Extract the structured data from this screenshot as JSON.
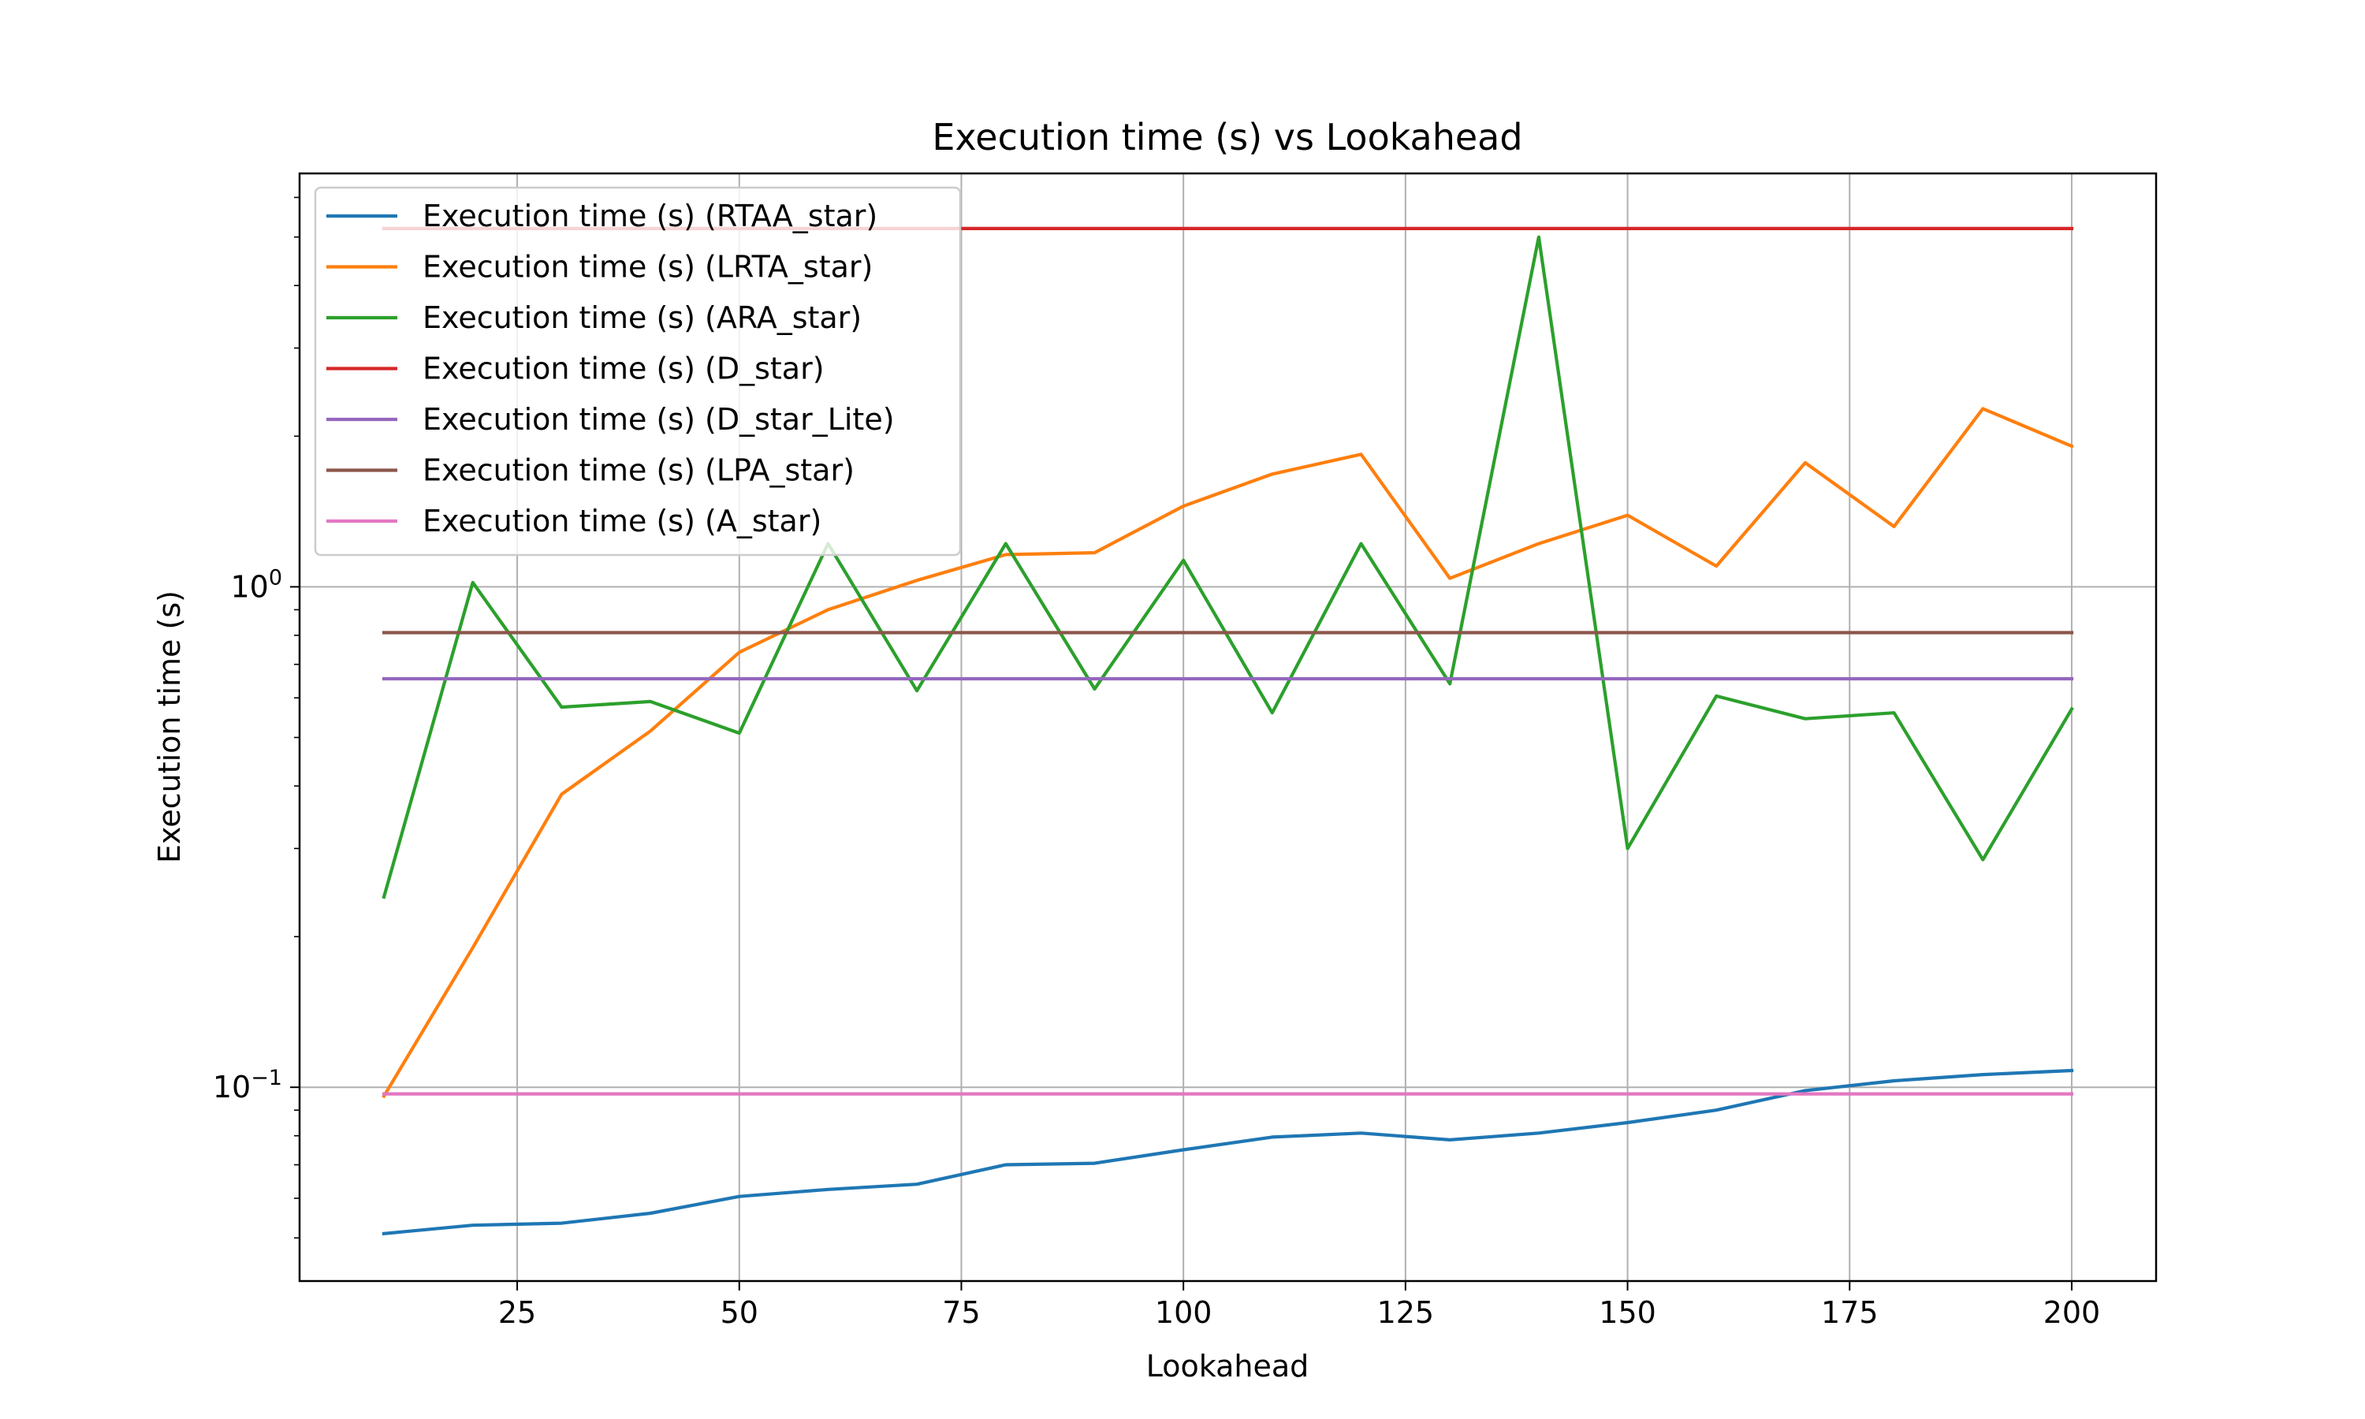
{
  "chart_data": {
    "type": "line",
    "title": "Execution time (s) vs Lookahead",
    "xlabel": "Lookahead",
    "ylabel": "Execution time (s)",
    "xlim": [
      0.5,
      209.5
    ],
    "ylim": [
      0.041,
      6.7
    ],
    "yscale": "log",
    "grid": true,
    "legend_position": "upper-left",
    "x_ticks": [
      {
        "value": 25,
        "label": "25"
      },
      {
        "value": 50,
        "label": "50"
      },
      {
        "value": 75,
        "label": "75"
      },
      {
        "value": 100,
        "label": "100"
      },
      {
        "value": 125,
        "label": "125"
      },
      {
        "value": 150,
        "label": "150"
      },
      {
        "value": 175,
        "label": "175"
      },
      {
        "value": 200,
        "label": "200"
      }
    ],
    "y_ticks": [
      {
        "value": 0.1,
        "base": "10",
        "exp": "−1"
      },
      {
        "value": 1,
        "base": "10",
        "exp": "0"
      }
    ],
    "x": [
      10,
      20,
      30,
      40,
      50,
      60,
      70,
      80,
      90,
      100,
      110,
      120,
      130,
      140,
      150,
      160,
      170,
      180,
      190,
      200
    ],
    "series": [
      {
        "name": "Execution time (s) (RTAA_star)",
        "color": "#1f77b4",
        "values": [
          0.051,
          0.053,
          0.0535,
          0.056,
          0.0605,
          0.0625,
          0.064,
          0.07,
          0.0705,
          0.075,
          0.0795,
          0.081,
          0.0785,
          0.081,
          0.085,
          0.09,
          0.0985,
          0.103,
          0.106,
          0.108
        ]
      },
      {
        "name": "Execution time (s) (LRTA_star)",
        "color": "#ff7f0e",
        "values": [
          0.096,
          0.19,
          0.385,
          0.515,
          0.74,
          0.9,
          1.03,
          1.16,
          1.17,
          1.45,
          1.68,
          1.84,
          1.04,
          1.22,
          1.39,
          1.1,
          1.77,
          1.32,
          2.27,
          1.91
        ]
      },
      {
        "name": "Execution time (s) (ARA_star)",
        "color": "#2ca02c",
        "values": [
          0.24,
          1.02,
          0.575,
          0.59,
          0.51,
          1.22,
          0.62,
          1.22,
          0.625,
          1.13,
          0.56,
          1.22,
          0.64,
          5.0,
          0.3,
          0.605,
          0.545,
          0.56,
          0.285,
          0.57
        ]
      },
      {
        "name": "Execution time (s) (D_star)",
        "color": "#d62728",
        "values": [
          5.2,
          5.2,
          5.2,
          5.2,
          5.2,
          5.2,
          5.2,
          5.2,
          5.2,
          5.2,
          5.2,
          5.2,
          5.2,
          5.2,
          5.2,
          5.2,
          5.2,
          5.2,
          5.2,
          5.2
        ]
      },
      {
        "name": "Execution time (s) (D_star_Lite)",
        "color": "#9467bd",
        "values": [
          0.655,
          0.655,
          0.655,
          0.655,
          0.655,
          0.655,
          0.655,
          0.655,
          0.655,
          0.655,
          0.655,
          0.655,
          0.655,
          0.655,
          0.655,
          0.655,
          0.655,
          0.655,
          0.655,
          0.655
        ]
      },
      {
        "name": "Execution time (s) (LPA_star)",
        "color": "#8c564b",
        "values": [
          0.81,
          0.81,
          0.81,
          0.81,
          0.81,
          0.81,
          0.81,
          0.81,
          0.81,
          0.81,
          0.81,
          0.81,
          0.81,
          0.81,
          0.81,
          0.81,
          0.81,
          0.81,
          0.81,
          0.81
        ]
      },
      {
        "name": "Execution time (s) (A_star)",
        "color": "#e377c2",
        "values": [
          0.097,
          0.097,
          0.097,
          0.097,
          0.097,
          0.097,
          0.097,
          0.097,
          0.097,
          0.097,
          0.097,
          0.097,
          0.097,
          0.097,
          0.097,
          0.097,
          0.097,
          0.097,
          0.097,
          0.097
        ]
      }
    ]
  }
}
